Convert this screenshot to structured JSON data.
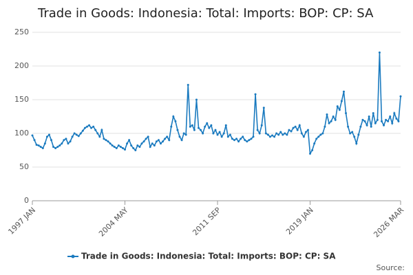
{
  "chart_data": {
    "type": "line",
    "title": "Trade in Goods: Indonesia: Total: Imports: BOP: CP: SA",
    "footer": "Source:",
    "categories": [
      "1997 JAN",
      null,
      null,
      null,
      null,
      null,
      null,
      null,
      null,
      null,
      null,
      null,
      null,
      null,
      null,
      null,
      null,
      null,
      null,
      null,
      null,
      null,
      null,
      null,
      null,
      null,
      null,
      null,
      null,
      null,
      null,
      null,
      null,
      null,
      null,
      null,
      null,
      null,
      null,
      null,
      null,
      null,
      null,
      null,
      "2004 MAY",
      null,
      null,
      null,
      null,
      null,
      null,
      null,
      null,
      null,
      null,
      null,
      null,
      null,
      null,
      null,
      null,
      null,
      null,
      null,
      null,
      null,
      null,
      null,
      null,
      null,
      null,
      null,
      null,
      null,
      null,
      null,
      null,
      null,
      null,
      null,
      null,
      null,
      null,
      null,
      null,
      null,
      null,
      null,
      "2011 SEP",
      null,
      null,
      null,
      null,
      null,
      null,
      null,
      null,
      null,
      null,
      null,
      null,
      null,
      null,
      null,
      null,
      null,
      null,
      null,
      null,
      null,
      null,
      null,
      null,
      null,
      null,
      null,
      null,
      null,
      null,
      null,
      null,
      null,
      null,
      null,
      null,
      null,
      null,
      null,
      null,
      null,
      null,
      null,
      "2019 JAN",
      null,
      null,
      null,
      null,
      null,
      null,
      null,
      null,
      null,
      null,
      null,
      null,
      null,
      null,
      null,
      null,
      null,
      null,
      null,
      null,
      null,
      null,
      null,
      null,
      null,
      null,
      null,
      null,
      null,
      null,
      null,
      null,
      null,
      null,
      null,
      null,
      null,
      null,
      null,
      null,
      null,
      null,
      "2026 MAR"
    ],
    "series": [
      {
        "name": "Trade in Goods: Indonesia: Total: Imports: BOP: CP: SA",
        "color": "#1a7abf",
        "values": [
          97,
          90,
          83,
          82,
          80,
          78,
          85,
          95,
          98,
          90,
          80,
          78,
          80,
          82,
          85,
          90,
          92,
          85,
          88,
          95,
          100,
          98,
          96,
          100,
          104,
          108,
          110,
          112,
          108,
          110,
          105,
          100,
          95,
          105,
          92,
          90,
          88,
          85,
          82,
          80,
          78,
          82,
          80,
          78,
          76,
          85,
          90,
          82,
          78,
          75,
          82,
          80,
          85,
          88,
          92,
          95,
          80,
          85,
          82,
          88,
          90,
          85,
          88,
          92,
          95,
          90,
          110,
          125,
          118,
          105,
          95,
          90,
          100,
          98,
          172,
          110,
          112,
          105,
          150,
          108,
          105,
          100,
          110,
          115,
          108,
          112,
          100,
          105,
          98,
          102,
          95,
          100,
          112,
          95,
          98,
          92,
          90,
          92,
          88,
          92,
          95,
          90,
          88,
          90,
          92,
          95,
          158,
          105,
          100,
          112,
          138,
          100,
          98,
          95,
          97,
          95,
          100,
          98,
          102,
          98,
          100,
          98,
          105,
          103,
          108,
          110,
          105,
          112,
          100,
          95,
          102,
          105,
          70,
          75,
          85,
          92,
          95,
          98,
          100,
          110,
          128,
          115,
          118,
          125,
          120,
          140,
          135,
          148,
          162,
          130,
          110,
          100,
          102,
          95,
          85,
          98,
          110,
          120,
          118,
          112,
          125,
          110,
          130,
          115,
          120,
          220,
          118,
          112,
          120,
          118,
          125,
          115,
          130,
          122,
          118,
          155
        ]
      }
    ],
    "ylim": [
      0,
      250
    ],
    "yticks": [
      0,
      50,
      100,
      150,
      200,
      250
    ],
    "grid": true
  }
}
